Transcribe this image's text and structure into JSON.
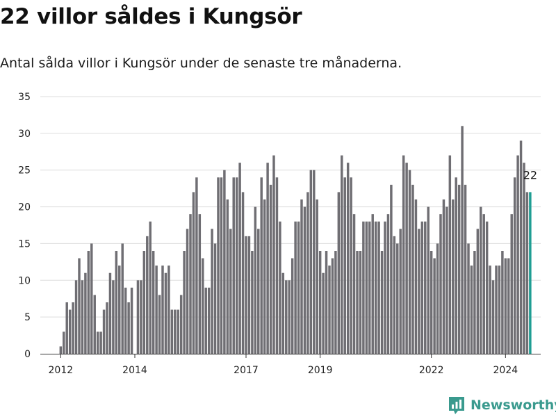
{
  "colors": {
    "bar": "#6f6e73",
    "highlight": "#1f9e93",
    "grid": "#dddddd",
    "axis": "#333333",
    "brand": "#3a9a8e"
  },
  "header": {
    "title": "22 villor såldes i Kungsör",
    "subtitle": "Antal sålda villor i Kungsör under de senaste tre månaderna."
  },
  "brand": {
    "name": "Newsworthy",
    "icon": "newsworthy-chart-icon"
  },
  "chart_data": {
    "type": "bar",
    "title": "22 villor såldes i Kungsör",
    "subtitle": "Antal sålda villor i Kungsör under de senaste tre månaderna.",
    "xlabel": "",
    "ylabel": "",
    "ylim": [
      0,
      35
    ],
    "yticks": [
      0,
      5,
      10,
      15,
      20,
      25,
      30,
      35
    ],
    "xlim": [
      2011.45,
      2024.95
    ],
    "xticks": [
      "2012",
      "2014",
      "2017",
      "2019",
      "2022",
      "2024"
    ],
    "grid": true,
    "highlight_last": true,
    "last_value_label": "22",
    "x_start": "2012-01",
    "frequency": "monthly",
    "values": [
      1,
      3,
      7,
      6,
      7,
      10,
      13,
      10,
      11,
      14,
      15,
      8,
      3,
      3,
      6,
      7,
      11,
      10,
      14,
      12,
      15,
      9,
      7,
      9,
      0,
      10,
      10,
      14,
      16,
      18,
      14,
      12,
      8,
      12,
      11,
      12,
      6,
      6,
      6,
      8,
      14,
      17,
      19,
      22,
      24,
      19,
      13,
      9,
      9,
      17,
      15,
      24,
      24,
      25,
      21,
      17,
      24,
      24,
      26,
      22,
      16,
      16,
      14,
      20,
      17,
      24,
      21,
      26,
      23,
      27,
      24,
      18,
      11,
      10,
      10,
      13,
      18,
      18,
      21,
      20,
      22,
      25,
      25,
      21,
      14,
      11,
      14,
      12,
      13,
      14,
      22,
      27,
      24,
      26,
      24,
      19,
      14,
      14,
      18,
      18,
      18,
      19,
      18,
      18,
      14,
      18,
      19,
      23,
      16,
      15,
      17,
      27,
      26,
      25,
      23,
      21,
      17,
      18,
      18,
      20,
      14,
      13,
      15,
      19,
      21,
      20,
      27,
      21,
      24,
      23,
      31,
      23,
      15,
      12,
      14,
      17,
      20,
      19,
      18,
      12,
      10,
      12,
      12,
      14,
      13,
      13,
      19,
      24,
      27,
      29,
      26,
      22,
      22
    ]
  }
}
